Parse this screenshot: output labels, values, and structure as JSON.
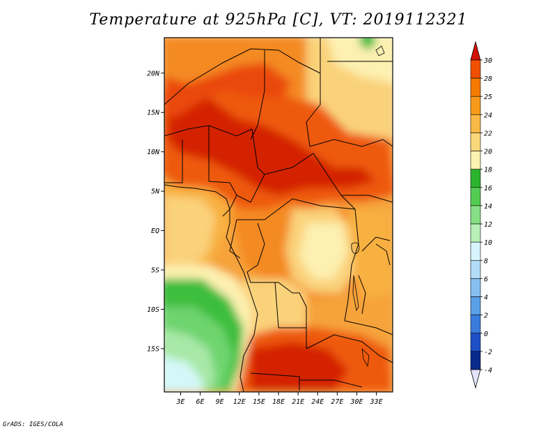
{
  "title": "Temperature at 925hPa [C], VT: 2019112321",
  "credit": "GrADS: IGES/COLA",
  "map": {
    "variable": "Temperature at 925hPa",
    "units": "C",
    "valid_time": "2019112321",
    "lat_range": [
      -20,
      25
    ],
    "lon_range": [
      0,
      35
    ],
    "lat_ticks": [
      "20N",
      "15N",
      "10N",
      "5N",
      "EQ",
      "5S",
      "10S",
      "15S"
    ],
    "lon_ticks": [
      "3E",
      "6E",
      "9E",
      "12E",
      "15E",
      "18E",
      "21E",
      "24E",
      "27E",
      "30E",
      "33E"
    ]
  },
  "colorbar": {
    "labels": [
      "30",
      "28",
      "25",
      "24",
      "22",
      "20",
      "18",
      "16",
      "14",
      "12",
      "10",
      "8",
      "6",
      "4",
      "2",
      "0",
      "-2",
      "-4"
    ],
    "colors": [
      "#e41a00",
      "#f05000",
      "#f57a00",
      "#f79a1a",
      "#f8b945",
      "#fad87a",
      "#fdf2b0",
      "#2db42d",
      "#52cc52",
      "#86e086",
      "#b8f0b8",
      "#d8f4fd",
      "#b4dcf8",
      "#86c0f0",
      "#5aa0e8",
      "#3a7cdc",
      "#1e50c8",
      "#0a2a8a",
      "#050a5a"
    ],
    "top_triangle_color": "#d41000",
    "bottom_triangle_color": "#e4e4fa"
  },
  "colors": {
    "hot": "#d42200",
    "warm": "#ee5a10",
    "orange": "#f48a20",
    "light_orange": "#f8b040",
    "yellow": "#fad27a",
    "pale": "#fdf0b0",
    "green_dark": "#3cbe3c",
    "green_mid": "#6ed46e",
    "green_light": "#a8e8a8",
    "cyan_pale": "#d4f8f8"
  }
}
